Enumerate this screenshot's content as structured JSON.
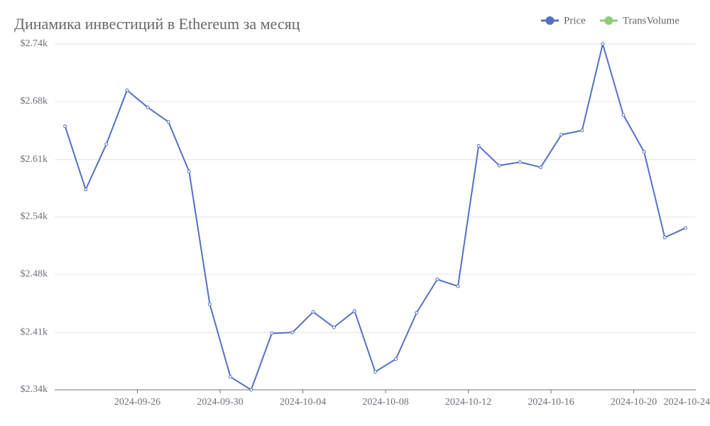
{
  "chart_data": {
    "type": "line",
    "title": "Динамика инвестиций в Ethereum за месяц",
    "x": [
      "2024-09-22",
      "2024-09-23",
      "2024-09-24",
      "2024-09-25",
      "2024-09-26",
      "2024-09-27",
      "2024-09-28",
      "2024-09-29",
      "2024-09-30",
      "2024-10-01",
      "2024-10-02",
      "2024-10-03",
      "2024-10-04",
      "2024-10-05",
      "2024-10-06",
      "2024-10-07",
      "2024-10-08",
      "2024-10-09",
      "2024-10-10",
      "2024-10-11",
      "2024-10-12",
      "2024-10-13",
      "2024-10-14",
      "2024-10-15",
      "2024-10-16",
      "2024-10-17",
      "2024-10-18",
      "2024-10-19",
      "2024-10-20",
      "2024-10-21",
      "2024-10-22"
    ],
    "series": [
      {
        "name": "Price",
        "color": "#5470c6",
        "values": [
          2648,
          2574,
          2627,
          2690,
          2670,
          2653,
          2595,
          2440,
          2355,
          2340,
          2406,
          2407,
          2431,
          2413,
          2432,
          2361,
          2376,
          2430,
          2469,
          2461,
          2625,
          2602,
          2606,
          2600,
          2638,
          2643,
          2744,
          2661,
          2618,
          2518,
          2529
        ]
      },
      {
        "name": "TransVolume",
        "color": "#91cc75",
        "values": [
          null,
          null,
          null,
          null,
          null,
          null,
          null,
          null,
          null,
          null,
          null,
          null,
          null,
          null,
          null,
          null,
          null,
          null,
          null,
          null,
          null,
          null,
          null,
          null,
          null,
          null,
          null,
          null,
          null,
          null,
          null
        ]
      }
    ],
    "ylim": [
      2340,
      2744
    ],
    "yticks": [
      {
        "value": 2340,
        "label": "$2.34k"
      },
      {
        "value": 2407,
        "label": "$2.41k"
      },
      {
        "value": 2475,
        "label": "$2.48k"
      },
      {
        "value": 2542,
        "label": "$2.54k"
      },
      {
        "value": 2609,
        "label": "$2.61k"
      },
      {
        "value": 2677,
        "label": "$2.68k"
      },
      {
        "value": 2744,
        "label": "$2.74k"
      }
    ],
    "xticks": [
      "2024-09-26",
      "2024-09-30",
      "2024-10-04",
      "2024-10-08",
      "2024-10-12",
      "2024-10-16",
      "2024-10-20",
      "2024-10-24"
    ],
    "grid": true
  }
}
